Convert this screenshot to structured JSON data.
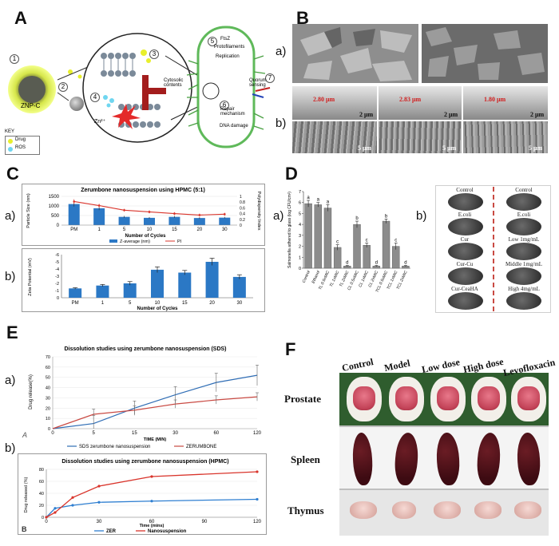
{
  "panels": {
    "A": {
      "letter": "A",
      "labels": {
        "n1": "1",
        "n2": "2",
        "n3": "3",
        "n4": "4",
        "n5": "5",
        "n6": "6",
        "n7": "7",
        "znp": "ZNP-C",
        "zn": "Zn²⁺",
        "key": "KEY",
        "drug": "Drug",
        "ros": "ROS",
        "ftsz": "FtsZ",
        "protofilaments": "Protofilaments",
        "replication": "Replication",
        "quorum": "Quorum sensing",
        "cytosolic": "Cytosolic contents",
        "repair": "Repair mechanism",
        "dna": "DNA damage"
      }
    },
    "B": {
      "letter": "B",
      "sub_a": "a)",
      "sub_b": "b)",
      "thickness": [
        "2.80 μm",
        "2.83 μm",
        "1.80 μm"
      ],
      "scale_b1": [
        "2 μm",
        "2 μm",
        "2 μm"
      ],
      "scale_b2": [
        "5 μm",
        "5 μm",
        "5 μm"
      ]
    },
    "C": {
      "letter": "C",
      "sub_a": "a)",
      "sub_b": "b)"
    },
    "D": {
      "letter": "D",
      "sub_a": "a)",
      "sub_b": "b)",
      "plates_left": [
        "Control",
        "E.coli",
        "Cur",
        "Cur-Cu",
        "Cur-CeaHA"
      ],
      "plates_right": [
        "Control",
        "E.coli",
        "Low 1mg/mL",
        "Middle 1mg/mL",
        "High 4mg/mL"
      ]
    },
    "E": {
      "letter": "E",
      "sub_a": "a)",
      "sub_b": "b)",
      "mark_a": "A",
      "mark_b": "B"
    },
    "F": {
      "letter": "F",
      "columns": [
        "Control",
        "Model",
        "Low dose",
        "High dose",
        "Levofloxacin"
      ],
      "rows": [
        "Prostate",
        "Spleen",
        "Thymus"
      ]
    }
  },
  "chart_data": [
    {
      "id": "C-a",
      "type": "bar",
      "title": "Zerumbone nanosuspension using HPMC (5:1)",
      "xlabel": "Number of Cycles",
      "ylabel": "Particle Size (nm)",
      "y2label": "Polydispersity Index",
      "categories": [
        "PM",
        "1",
        "5",
        "10",
        "15",
        "20",
        "30"
      ],
      "ylim": [
        0,
        1500
      ],
      "yticks": [
        "0",
        "500",
        "1000",
        "1500"
      ],
      "y2lim": [
        0,
        1
      ],
      "y2ticks": [
        "0",
        "0.2",
        "0.4",
        "0.6",
        "0.8",
        "1"
      ],
      "series": [
        {
          "name": "Z-average (nm)",
          "kind": "bar",
          "color": "#2b78c5",
          "values": [
            1100,
            880,
            430,
            380,
            430,
            370,
            390
          ],
          "errors": [
            130,
            100,
            50,
            40,
            50,
            40,
            40
          ]
        },
        {
          "name": "PI",
          "kind": "line",
          "color": "#d9342b",
          "axis": "y2",
          "values": [
            0.82,
            0.68,
            0.52,
            0.46,
            0.4,
            0.35,
            0.38
          ],
          "errors": [
            0.08,
            0.06,
            0.05,
            0.05,
            0.05,
            0.05,
            0.05
          ]
        }
      ],
      "grid": true,
      "legend": "bottom"
    },
    {
      "id": "C-b",
      "type": "bar",
      "title": "",
      "xlabel": "Number of Cycles",
      "ylabel": "Zeta Potential (mV)",
      "categories": [
        "PM",
        "1",
        "5",
        "10",
        "15",
        "20",
        "30"
      ],
      "ylim": [
        0,
        -6
      ],
      "yticks": [
        "0",
        "-1",
        "-2",
        "-3",
        "-4",
        "-5",
        "-6"
      ],
      "values": [
        -1.3,
        -1.7,
        -2.0,
        -3.9,
        -3.5,
        -5.0,
        -2.9
      ],
      "errors": [
        0.1,
        0.15,
        0.25,
        0.4,
        0.3,
        0.5,
        0.3
      ],
      "color": "#2b78c5",
      "grid": false
    },
    {
      "id": "D-a",
      "type": "bar",
      "title": "",
      "ylabel": "Salmonella adhered to glass (log CFU/cm²)",
      "categories": [
        "Control",
        "Ethanol",
        "TL 0.5xMIC",
        "TL 1xMIC",
        "TL 2xMIC",
        "CL 0.5xMIC",
        "CL 1xMIC",
        "CL 2xMIC",
        "TCL 0.5xMIC",
        "TCL 1xMIC",
        "TCL 2xMIC"
      ],
      "ylim": [
        0,
        7
      ],
      "yticks": [
        "0",
        "1",
        "2",
        "3",
        "4",
        "5",
        "6",
        "7"
      ],
      "values": [
        5.9,
        5.8,
        5.5,
        1.9,
        0.2,
        4.0,
        2.1,
        0.2,
        4.3,
        2.0,
        0.2
      ],
      "errors": [
        0.3,
        0.2,
        0.3,
        0.25,
        0.05,
        0.3,
        0.2,
        0.05,
        0.2,
        0.3,
        0.05
      ],
      "letters": [
        "a",
        "a",
        "a",
        "c",
        "d",
        "b",
        "c",
        "d",
        "b",
        "c",
        "d"
      ],
      "color": "#8c8c8c"
    },
    {
      "id": "E-a",
      "type": "line",
      "title": "Dissolution studies using zerumbone nanosuspension (SDS)",
      "xlabel": "TIME (MIN)",
      "ylabel": "Drug release(%)",
      "x": [
        0,
        5,
        15,
        30,
        60,
        120
      ],
      "xticks": [
        "0",
        "5",
        "15",
        "30",
        "60",
        "120"
      ],
      "ylim": [
        0,
        70
      ],
      "yticks": [
        "0",
        "10",
        "20",
        "30",
        "40",
        "50",
        "60",
        "70"
      ],
      "series": [
        {
          "name": "SDS zerumbone nanosuspension",
          "color": "#2f6db5",
          "values": [
            0,
            5,
            20,
            33,
            45,
            52
          ],
          "errors": [
            0,
            8,
            7,
            8,
            9,
            10
          ]
        },
        {
          "name": "ZERUMBONE",
          "color": "#c94a43",
          "values": [
            0,
            14,
            18,
            24,
            28,
            31
          ],
          "errors": [
            0,
            5,
            4,
            4,
            4,
            4
          ]
        }
      ],
      "legend": "bottom"
    },
    {
      "id": "E-b",
      "type": "line",
      "title": "Dissolution studies using zerumbone nanosuspension (HPMC)",
      "xlabel": "Time (mins)",
      "ylabel": "Drug released (%)",
      "x": [
        0,
        5,
        15,
        30,
        60,
        120
      ],
      "xticks": [
        "0",
        "30",
        "60",
        "90",
        "120"
      ],
      "xlim": [
        0,
        120
      ],
      "ylim": [
        0,
        80
      ],
      "yticks": [
        "0",
        "20",
        "40",
        "60",
        "80"
      ],
      "series": [
        {
          "name": "ZER",
          "color": "#2f7fd1",
          "values": [
            0,
            15,
            20,
            25,
            27,
            30
          ]
        },
        {
          "name": "Nanosuspension",
          "color": "#d9342b",
          "values": [
            0,
            8,
            33,
            52,
            68,
            76
          ]
        }
      ],
      "legend": "bottom"
    }
  ]
}
